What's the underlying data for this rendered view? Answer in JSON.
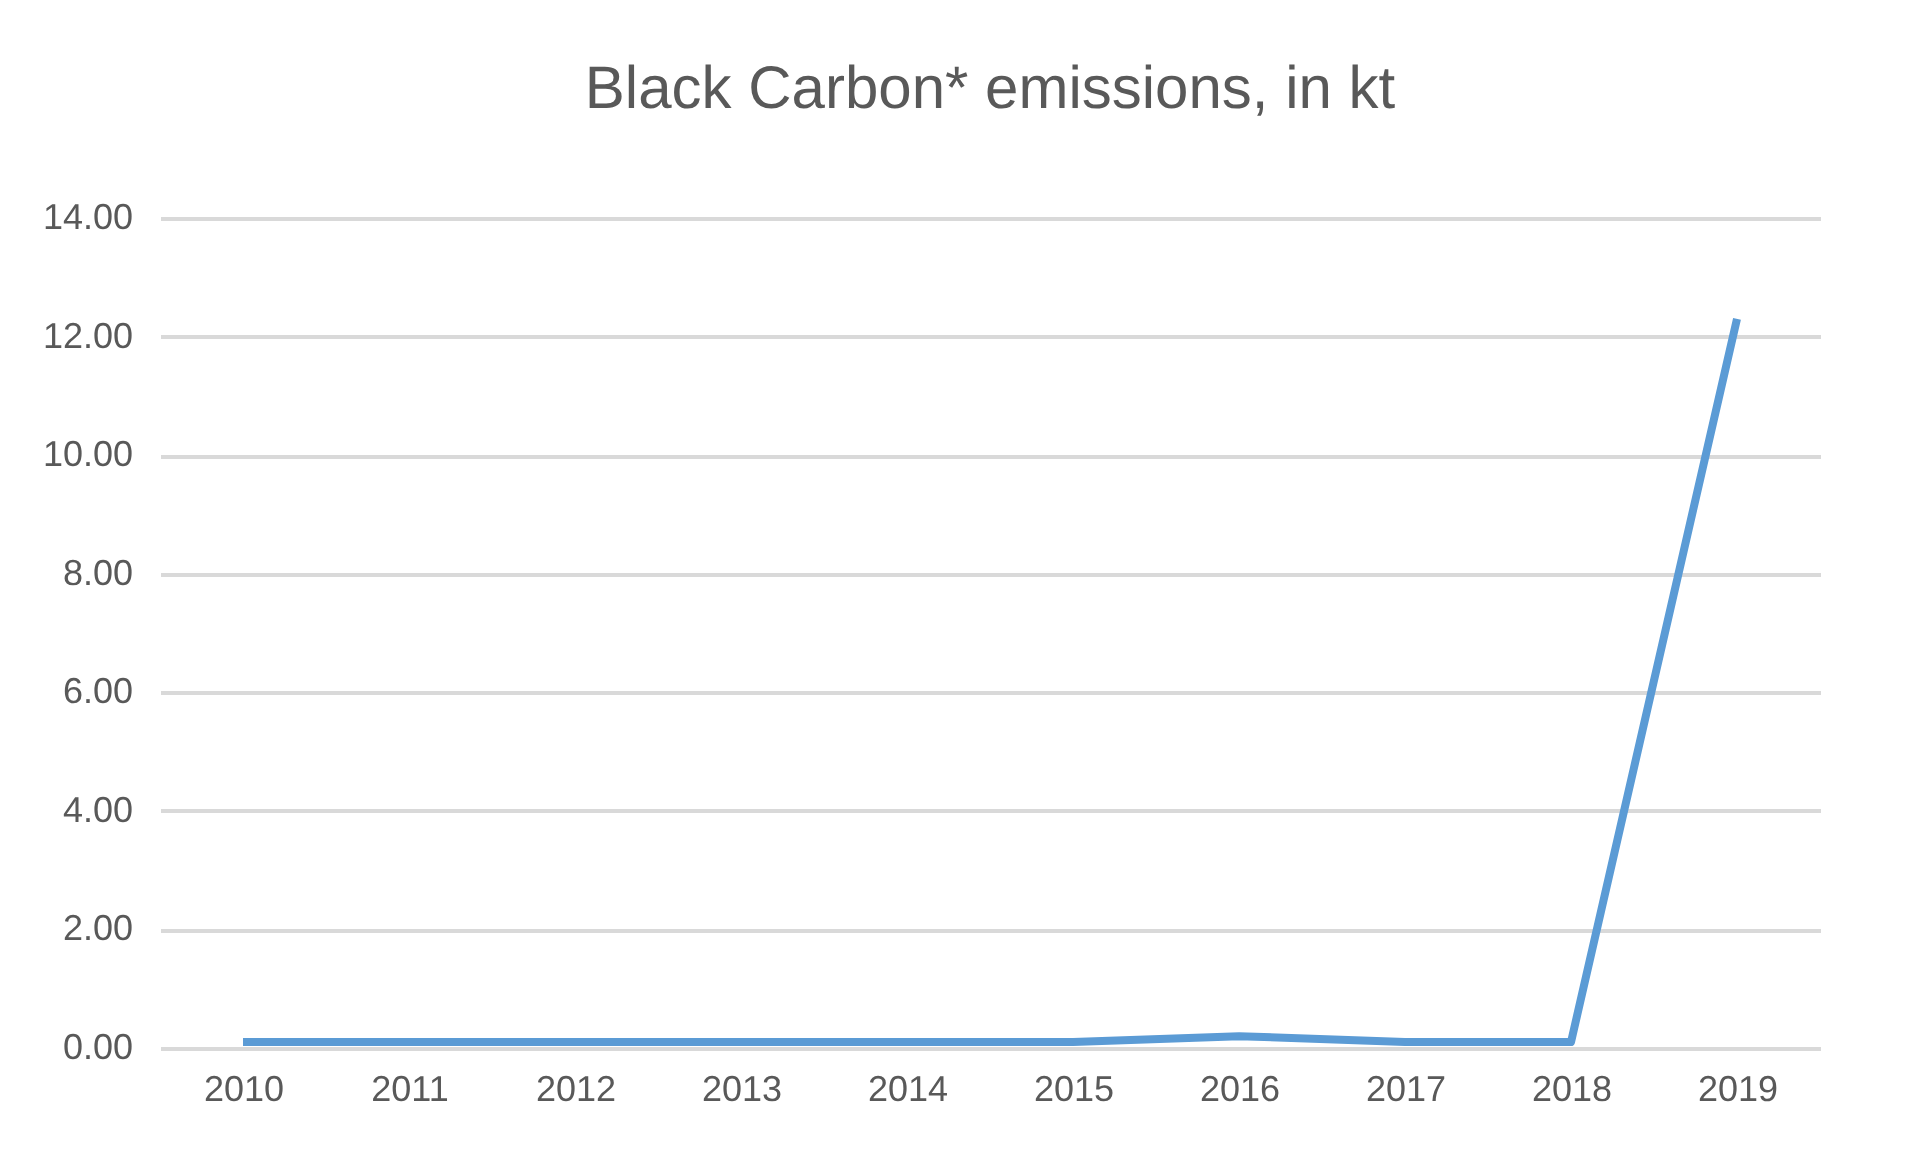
{
  "chart_data": {
    "type": "line",
    "title": "Black Carbon* emissions, in kt",
    "categories": [
      "2010",
      "2011",
      "2012",
      "2013",
      "2014",
      "2015",
      "2016",
      "2017",
      "2018",
      "2019"
    ],
    "series": [
      {
        "color": "#5b9bd5",
        "values": [
          0.1,
          0.1,
          0.1,
          0.1,
          0.1,
          0.1,
          0.2,
          0.1,
          0.1,
          12.3
        ]
      }
    ],
    "ylim": [
      0,
      14
    ],
    "yticks": [
      {
        "value": 0,
        "label": "0.00"
      },
      {
        "value": 2,
        "label": "2.00"
      },
      {
        "value": 4,
        "label": "4.00"
      },
      {
        "value": 6,
        "label": "6.00"
      },
      {
        "value": 8,
        "label": "8.00"
      },
      {
        "value": 10,
        "label": "10.00"
      },
      {
        "value": 12,
        "label": "12.00"
      },
      {
        "value": 14,
        "label": "14.00"
      }
    ],
    "grid": "y",
    "marker": "none",
    "line_style": "solid"
  }
}
